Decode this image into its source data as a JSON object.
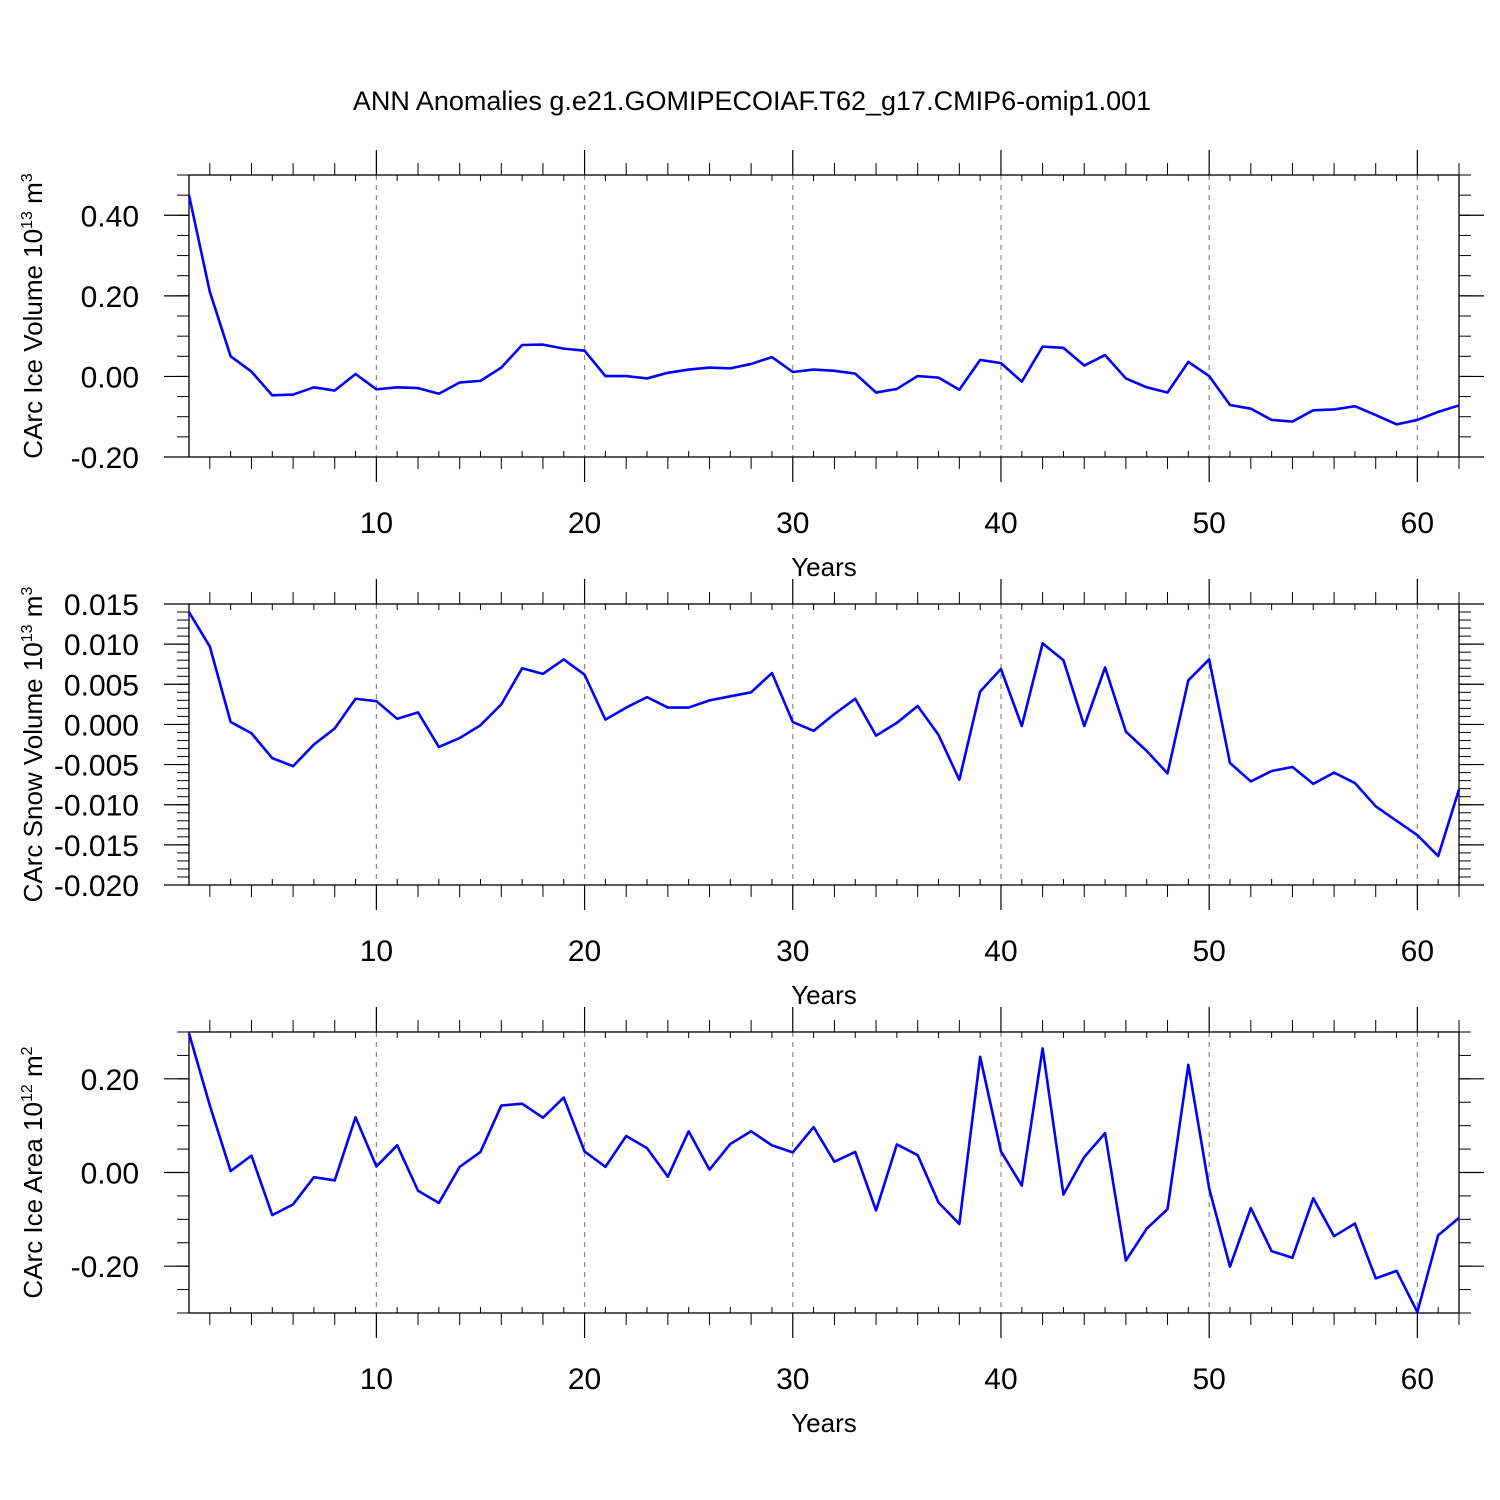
{
  "title": "ANN Anomalies g.e21.GOMIPECOIAF.T62_g17.CMIP6-omip1.001",
  "chart_data": [
    {
      "type": "line",
      "ylabel": {
        "prefix": "CArc Ice Volume 10",
        "exp": "13",
        "unit": " m",
        "unit_exp": "3"
      },
      "xlabel": "Years",
      "xlim": [
        1,
        62
      ],
      "ylim": [
        -0.2,
        0.5
      ],
      "yticks": [
        -0.2,
        0.0,
        0.2,
        0.4
      ],
      "ytick_labels": [
        "-0.20",
        "0.00",
        "0.20",
        "0.40"
      ],
      "yminor_step": 0.05,
      "xticks": [
        10,
        20,
        30,
        40,
        50,
        60
      ],
      "xtick_labels": [
        "10",
        "20",
        "30",
        "40",
        "50",
        "60"
      ],
      "grid": "vertical-dashed",
      "line_color": "#0000ff",
      "x_start": 1,
      "values": [
        0.45,
        0.21,
        0.05,
        0.012,
        -0.047,
        -0.045,
        -0.027,
        -0.035,
        0.006,
        -0.032,
        -0.027,
        -0.029,
        -0.043,
        -0.015,
        -0.011,
        0.022,
        0.078,
        0.079,
        0.069,
        0.064,
        0.001,
        0.001,
        -0.005,
        0.009,
        0.017,
        0.022,
        0.02,
        0.031,
        0.048,
        0.011,
        0.017,
        0.014,
        0.007,
        -0.04,
        -0.031,
        0.001,
        -0.003,
        -0.033,
        0.041,
        0.033,
        -0.013,
        0.074,
        0.071,
        0.027,
        0.053,
        -0.005,
        -0.027,
        -0.04,
        0.036,
        0.001,
        -0.071,
        -0.08,
        -0.108,
        -0.112,
        -0.084,
        -0.082,
        -0.074,
        -0.096,
        -0.119,
        -0.108,
        -0.088,
        -0.072
      ]
    },
    {
      "type": "line",
      "ylabel": {
        "prefix": "CArc Snow Volume 10",
        "exp": "13",
        "unit": " m",
        "unit_exp": "3"
      },
      "xlabel": "Years",
      "xlim": [
        1,
        62
      ],
      "ylim": [
        -0.02,
        0.015
      ],
      "yticks": [
        -0.02,
        -0.015,
        -0.01,
        -0.005,
        0.0,
        0.005,
        0.01,
        0.015
      ],
      "ytick_labels": [
        "-0.020",
        "-0.015",
        "-0.010",
        "-0.005",
        "0.000",
        "0.005",
        "0.010",
        "0.015"
      ],
      "yminor_step": 0.001,
      "xticks": [
        10,
        20,
        30,
        40,
        50,
        60
      ],
      "xtick_labels": [
        "10",
        "20",
        "30",
        "40",
        "50",
        "60"
      ],
      "grid": "vertical-dashed",
      "line_color": "#0000ff",
      "x_start": 1,
      "values": [
        0.014,
        0.0097,
        0.0003,
        -0.0011,
        -0.0042,
        -0.0052,
        -0.0025,
        -0.0005,
        0.0032,
        0.0029,
        0.0007,
        0.0015,
        -0.0028,
        -0.0017,
        -0.0001,
        0.0025,
        0.007,
        0.0063,
        0.0081,
        0.0062,
        0.0006,
        0.0021,
        0.0034,
        0.0021,
        0.0021,
        0.003,
        0.0035,
        0.004,
        0.0064,
        0.0003,
        -0.0008,
        0.0013,
        0.0032,
        -0.0014,
        0.0002,
        0.0023,
        -0.0013,
        -0.0069,
        0.0041,
        0.0069,
        -0.0002,
        0.0101,
        0.008,
        -0.0002,
        0.0071,
        -0.0009,
        -0.0033,
        -0.0061,
        0.0055,
        0.0081,
        -0.0048,
        -0.0071,
        -0.0058,
        -0.0053,
        -0.0074,
        -0.006,
        -0.0073,
        -0.0102,
        -0.012,
        -0.0138,
        -0.0164,
        -0.0081
      ]
    },
    {
      "type": "line",
      "ylabel": {
        "prefix": "CArc Ice Area 10",
        "exp": "12",
        "unit": " m",
        "unit_exp": "2"
      },
      "xlabel": "Years",
      "xlim": [
        1,
        62
      ],
      "ylim": [
        -0.3,
        0.3
      ],
      "yticks": [
        -0.2,
        0.0,
        0.2
      ],
      "ytick_labels": [
        "-0.20",
        "0.00",
        "0.20"
      ],
      "yminor_step": 0.05,
      "xticks": [
        10,
        20,
        30,
        40,
        50,
        60
      ],
      "xtick_labels": [
        "10",
        "20",
        "30",
        "40",
        "50",
        "60"
      ],
      "grid": "vertical-dashed",
      "line_color": "#0000ff",
      "x_start": 1,
      "values": [
        0.297,
        0.143,
        0.003,
        0.036,
        -0.091,
        -0.068,
        -0.01,
        -0.017,
        0.118,
        0.013,
        0.058,
        -0.039,
        -0.065,
        0.012,
        0.044,
        0.143,
        0.147,
        0.117,
        0.16,
        0.045,
        0.012,
        0.078,
        0.052,
        -0.009,
        0.088,
        0.006,
        0.061,
        0.088,
        0.058,
        0.043,
        0.097,
        0.023,
        0.044,
        -0.081,
        0.06,
        0.037,
        -0.064,
        -0.11,
        0.247,
        0.045,
        -0.028,
        0.265,
        -0.047,
        0.033,
        0.084,
        -0.188,
        -0.12,
        -0.078,
        0.23,
        -0.034,
        -0.201,
        -0.076,
        -0.168,
        -0.182,
        -0.055,
        -0.136,
        -0.109,
        -0.226,
        -0.21,
        -0.298,
        -0.134,
        -0.097
      ]
    }
  ]
}
